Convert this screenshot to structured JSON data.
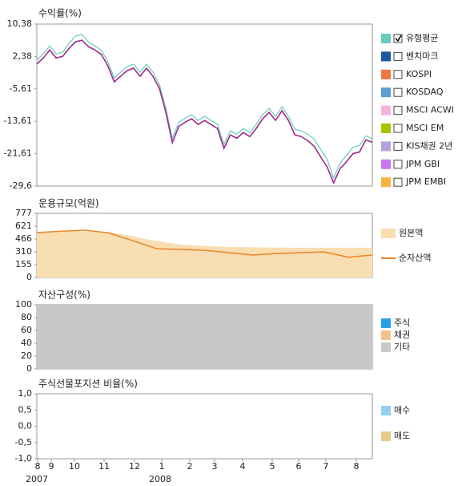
{
  "chart_data": [
    {
      "type": "line",
      "title": "수익률(%)",
      "ylim": [
        -29.6,
        10.38
      ],
      "yticks": [
        {
          "value": 10.38,
          "label": "10,38"
        },
        {
          "value": 2.38,
          "label": "2,38"
        },
        {
          "value": -5.61,
          "label": "-5,61"
        },
        {
          "value": -13.61,
          "label": "-13,61"
        },
        {
          "value": -21.61,
          "label": "-21,61"
        },
        {
          "value": -29.6,
          "label": "-29,6"
        }
      ],
      "series": [
        {
          "color": "#66ccbb",
          "values": [
            1.5,
            3,
            5,
            3,
            3.4,
            5.6,
            7.4,
            7.8,
            6,
            5,
            3.9,
            1.1,
            -2.9,
            -1.5,
            -0.1,
            0.5,
            -1.5,
            0.5,
            -1.5,
            -4.5,
            -10.4,
            -17.9,
            -13.9,
            -12.8,
            -12,
            -13.4,
            -12.4,
            -13.4,
            -14.4,
            -19.3,
            -16,
            -16.8,
            -15.4,
            -16.4,
            -14.4,
            -12,
            -10.4,
            -12.4,
            -10,
            -12.4,
            -15.6,
            -16,
            -16.8,
            -18,
            -20.6,
            -23,
            -27.6,
            -24,
            -22,
            -20,
            -19.6,
            -17.2,
            -18
          ]
        },
        {
          "color": "#a0288c",
          "values": [
            0.5,
            2,
            4,
            2,
            2.4,
            4.4,
            6,
            6.4,
            4.8,
            4,
            2.9,
            0.1,
            -3.9,
            -2.5,
            -1.1,
            -0.5,
            -2.5,
            -0.5,
            -2.5,
            -5.5,
            -11.4,
            -18.9,
            -14.9,
            -13.8,
            -13,
            -14.4,
            -13.4,
            -14.4,
            -15.4,
            -20.3,
            -17,
            -17.8,
            -16.4,
            -17.4,
            -15.4,
            -13,
            -11.4,
            -13.4,
            -11,
            -13.4,
            -17,
            -17.4,
            -18.4,
            -19.8,
            -22.4,
            -24.9,
            -28.8,
            -25.3,
            -23.6,
            -21.6,
            -21.2,
            -18.2,
            -18.8
          ]
        }
      ],
      "legend": [
        {
          "name": "유형평균",
          "color": "#66ccbb",
          "checked": true
        },
        {
          "name": "벤치마크",
          "color": "#1a5aa0",
          "checked": false
        },
        {
          "name": "KOSPI",
          "color": "#f07840",
          "checked": false
        },
        {
          "name": "KOSDAQ",
          "color": "#5aa0d2",
          "checked": false
        },
        {
          "name": "MSCI ACWI",
          "color": "#f5b4dc",
          "checked": false
        },
        {
          "name": "MSCI EM",
          "color": "#a0c800",
          "checked": false
        },
        {
          "name": "KIS채권 2년",
          "color": "#b4a0dc",
          "checked": false
        },
        {
          "name": "JPM GBI",
          "color": "#c878f0",
          "checked": false
        },
        {
          "name": "JPM EMBI",
          "color": "#f5b43c",
          "checked": false
        }
      ]
    },
    {
      "type": "area",
      "title": "운용규모(억원)",
      "ylim": [
        0,
        777
      ],
      "yticks": [
        777,
        621,
        466,
        310,
        155,
        0
      ],
      "series": [
        {
          "name": "원본액",
          "color": "#f8deb0",
          "style": "area",
          "values": [
            554,
            560,
            560,
            550,
            500,
            440,
            400,
            380,
            370,
            365,
            362,
            360,
            360,
            360,
            360
          ]
        },
        {
          "name": "순자산액",
          "color": "#e8862a",
          "style": "line",
          "values": [
            544,
            560,
            573,
            540,
            446,
            349,
            340,
            330,
            300,
            272,
            290,
            300,
            310,
            245,
            272
          ]
        }
      ]
    },
    {
      "type": "stacked_area",
      "title": "자산구성(%)",
      "ylim": [
        0,
        100
      ],
      "yticks": [
        100,
        80,
        60,
        40,
        20,
        0
      ],
      "series": [
        {
          "name": "주식",
          "color": "#2aa0e8",
          "values": [
            0
          ]
        },
        {
          "name": "채권",
          "color": "#f4c08c",
          "values": [
            0
          ]
        },
        {
          "name": "기타",
          "color": "#c8c8c8",
          "values": [
            100
          ]
        }
      ]
    },
    {
      "type": "bar",
      "title": "주식선물포지션 비율(%)",
      "ylim": [
        -1,
        1
      ],
      "yticks": [
        {
          "value": 1,
          "label": "1,0"
        },
        {
          "value": 0.5,
          "label": "0,5"
        },
        {
          "value": 0,
          "label": "0,0"
        },
        {
          "value": -0.5,
          "label": "-0,5"
        },
        {
          "value": -1,
          "label": "-1,0"
        }
      ],
      "series": [
        {
          "name": "매수",
          "color": "#96cdf5",
          "values": []
        },
        {
          "name": "매도",
          "color": "#e8c88c",
          "values": []
        }
      ]
    }
  ],
  "x_axis": {
    "categories": [
      "8",
      "9",
      "10",
      "11",
      "12",
      "1",
      "2",
      "3",
      "4",
      "5",
      "6",
      "7",
      "8"
    ],
    "years": [
      "2007",
      "2008"
    ]
  }
}
